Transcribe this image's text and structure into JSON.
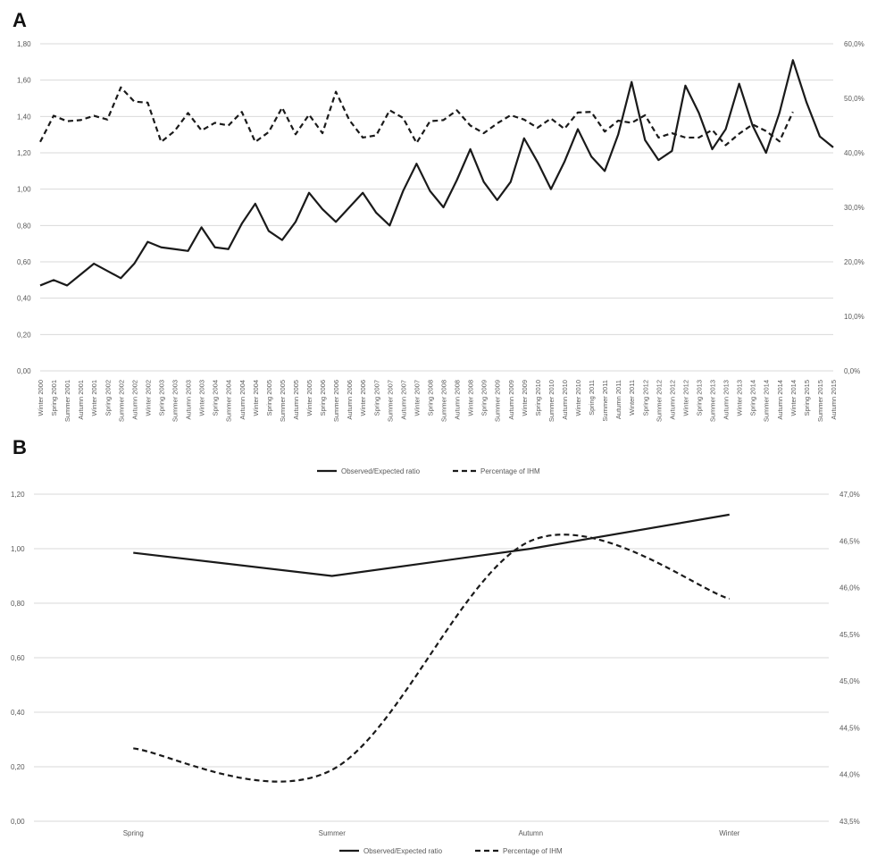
{
  "panels": {
    "a_letter": "A",
    "b_letter": "B"
  },
  "colors": {
    "line": "#1a1a1a",
    "grid": "#d9d9d9",
    "text": "#595959"
  },
  "chart_data": [
    {
      "type": "line",
      "panel": "A",
      "categories": [
        "Winter 2000",
        "Spring 2001",
        "Summer 2001",
        "Autumn 2001",
        "Winter 2001",
        "Spring 2002",
        "Summer 2002",
        "Autumn 2002",
        "Winter 2002",
        "Spring 2003",
        "Summer 2003",
        "Autumn 2003",
        "Winter 2003",
        "Spring 2004",
        "Summer 2004",
        "Autumn 2004",
        "Winter 2004",
        "Spring 2005",
        "Summer 2005",
        "Autumn 2005",
        "Winter 2005",
        "Spring 2006",
        "Summer 2006",
        "Autumn 2006",
        "Winter 2006",
        "Spring 2007",
        "Summer 2007",
        "Autumn 2007",
        "Winter 2007",
        "Spring 2008",
        "Summer 2008",
        "Autumn 2008",
        "Winter 2008",
        "Spring 2009",
        "Summer 2009",
        "Autumn 2009",
        "Winter 2009",
        "Spring 2010",
        "Summer 2010",
        "Autumn 2010",
        "Winter 2010",
        "Spring 2011",
        "Summer 2011",
        "Autumn 2011",
        "Winter 2011",
        "Spring 2012",
        "Summer 2012",
        "Autumn 2012",
        "Winter 2012",
        "Spring 2013",
        "Summer 2013",
        "Autumn 2013",
        "Winter 2013",
        "Spring 2014",
        "Summer 2014",
        "Autumn 2014",
        "Winter 2014",
        "Spring 2015",
        "Summer 2015",
        "Autumn 2015"
      ],
      "series": [
        {
          "name": "Observed/Expected ratio",
          "axis": "left",
          "style": "solid",
          "values": [
            0.47,
            0.5,
            0.47,
            0.53,
            0.59,
            0.55,
            0.51,
            0.59,
            0.71,
            0.68,
            0.67,
            0.66,
            0.79,
            0.68,
            0.67,
            0.81,
            0.92,
            0.77,
            0.72,
            0.82,
            0.98,
            0.89,
            0.82,
            0.9,
            0.98,
            0.87,
            0.8,
            0.99,
            1.14,
            0.99,
            0.9,
            1.05,
            1.22,
            1.04,
            0.94,
            1.04,
            1.28,
            1.15,
            1.0,
            1.15,
            1.33,
            1.18,
            1.1,
            1.3,
            1.59,
            1.27,
            1.16,
            1.21,
            1.57,
            1.42,
            1.22,
            1.33,
            1.58,
            1.35,
            1.2,
            1.42,
            1.71,
            1.48,
            1.29,
            1.23
          ]
        },
        {
          "name": "Percentage of IHM",
          "axis": "right",
          "style": "dashed",
          "values": [
            42.0,
            46.8,
            45.8,
            46.0,
            46.8,
            46.1,
            52.0,
            49.4,
            49.2,
            42.0,
            44.0,
            47.3,
            44.1,
            45.5,
            45.0,
            47.5,
            42.0,
            43.8,
            48.3,
            43.4,
            47.0,
            43.6,
            51.2,
            46.0,
            42.8,
            43.2,
            47.8,
            46.4,
            41.8,
            45.8,
            46.0,
            47.8,
            45.0,
            43.6,
            45.4,
            46.9,
            46.1,
            44.6,
            46.3,
            44.4,
            47.4,
            47.5,
            43.9,
            45.9,
            45.5,
            46.9,
            42.8,
            43.6,
            42.8,
            42.8,
            44.2,
            41.4,
            43.5,
            45.2,
            44.0,
            42.1,
            47.5,
            null,
            null,
            null
          ]
        }
      ],
      "y_left": {
        "ticks": [
          "0,00",
          "0,20",
          "0,40",
          "0,60",
          "0,80",
          "1,00",
          "1,20",
          "1,40",
          "1,60",
          "1,80"
        ],
        "min": 0,
        "max": 1.8
      },
      "y_right": {
        "ticks": [
          "0,0%",
          "10,0%",
          "20,0%",
          "30,0%",
          "40,0%",
          "50,0%",
          "60,0%"
        ],
        "min": 0,
        "max": 60
      },
      "grid": true
    },
    {
      "type": "line",
      "panel": "B",
      "categories": [
        "Spring",
        "Summer",
        "Autumn",
        "Winter"
      ],
      "series": [
        {
          "name": "Observed/Expected ratio",
          "axis": "left",
          "style": "solid",
          "values": [
            0.985,
            0.9,
            1.0,
            1.125
          ]
        },
        {
          "name": "Percentage of IHM",
          "axis": "right",
          "style": "dashed",
          "smooth": true,
          "values": [
            44.28,
            44.05,
            46.5,
            45.88
          ]
        }
      ],
      "y_left": {
        "ticks": [
          "0,00",
          "0,20",
          "0,40",
          "0,60",
          "0,80",
          "1,00",
          "1,20"
        ],
        "min": 0,
        "max": 1.2
      },
      "y_right": {
        "ticks": [
          "43,5%",
          "44,0%",
          "44,5%",
          "45,0%",
          "45,5%",
          "46,0%",
          "46,5%",
          "47,0%"
        ],
        "min": 43.5,
        "max": 47.0
      },
      "grid": true
    }
  ],
  "legend": {
    "solid_label": "Observed/Expected ratio",
    "dashed_label": "Percentage of IHM"
  }
}
